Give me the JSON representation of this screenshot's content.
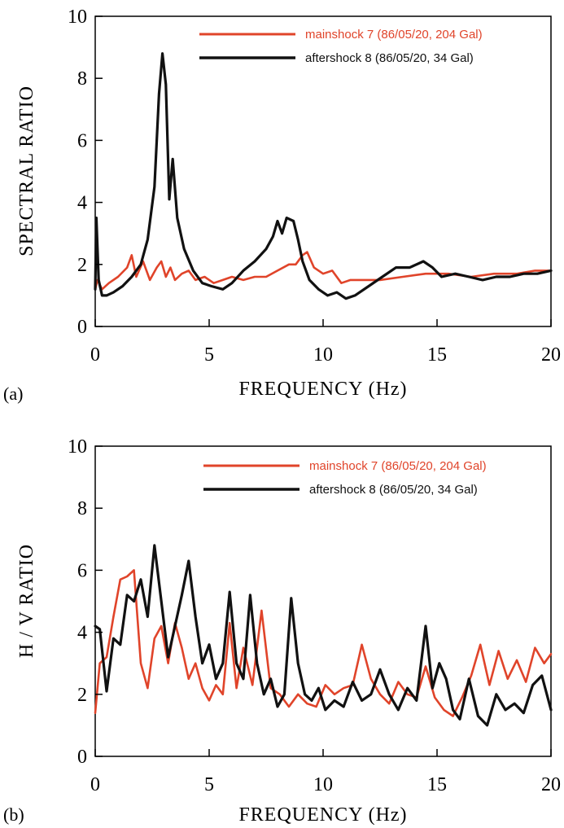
{
  "chart_data": [
    {
      "type": "line",
      "panel_label": "(a)",
      "xlabel": "FREQUENCY (Hz)",
      "ylabel": "SPECTRAL  RATIO",
      "xlim": [
        0,
        20
      ],
      "ylim": [
        0,
        10
      ],
      "xticks": [
        0,
        5,
        10,
        15,
        20
      ],
      "yticks": [
        0,
        2,
        4,
        6,
        8,
        10
      ],
      "grid": false,
      "legend_position": "top-right",
      "series": [
        {
          "name": "mainshock 7 (86/05/20, 204 Gal)",
          "color": "#e0442a",
          "x": [
            0,
            0.1,
            0.3,
            0.6,
            1.0,
            1.4,
            1.6,
            1.8,
            2.1,
            2.4,
            2.7,
            2.9,
            3.1,
            3.3,
            3.5,
            3.8,
            4.1,
            4.4,
            4.8,
            5.2,
            5.6,
            6.0,
            6.5,
            7.0,
            7.5,
            8.0,
            8.5,
            8.8,
            9.1,
            9.3,
            9.6,
            10.0,
            10.4,
            10.8,
            11.2,
            11.8,
            12.5,
            13.5,
            14.5,
            15.5,
            16.5,
            17.5,
            18.5,
            19.3,
            20.0
          ],
          "y": [
            1.2,
            1.5,
            1.2,
            1.4,
            1.6,
            1.9,
            2.3,
            1.6,
            2.1,
            1.5,
            1.9,
            2.1,
            1.6,
            1.9,
            1.5,
            1.7,
            1.8,
            1.5,
            1.6,
            1.4,
            1.5,
            1.6,
            1.5,
            1.6,
            1.6,
            1.8,
            2.0,
            2.0,
            2.3,
            2.4,
            1.9,
            1.7,
            1.8,
            1.4,
            1.5,
            1.5,
            1.5,
            1.6,
            1.7,
            1.7,
            1.6,
            1.7,
            1.7,
            1.8,
            1.8
          ]
        },
        {
          "name": "aftershock 8 (86/05/20, 34 Gal)",
          "color": "#111111",
          "x": [
            0,
            0.05,
            0.15,
            0.3,
            0.5,
            0.8,
            1.2,
            1.6,
            2.0,
            2.3,
            2.6,
            2.8,
            2.95,
            3.1,
            3.25,
            3.4,
            3.6,
            3.9,
            4.3,
            4.7,
            5.1,
            5.6,
            6.0,
            6.5,
            7.0,
            7.5,
            7.8,
            8.0,
            8.2,
            8.4,
            8.7,
            8.9,
            9.1,
            9.4,
            9.8,
            10.2,
            10.6,
            11.0,
            11.4,
            12.0,
            12.6,
            13.2,
            13.8,
            14.4,
            14.8,
            15.2,
            15.8,
            16.4,
            17.0,
            17.6,
            18.2,
            18.8,
            19.4,
            20.0
          ],
          "y": [
            1.2,
            3.5,
            1.5,
            1.0,
            1.0,
            1.1,
            1.3,
            1.6,
            2.0,
            2.8,
            4.5,
            7.5,
            8.8,
            7.8,
            4.1,
            5.4,
            3.5,
            2.5,
            1.8,
            1.4,
            1.3,
            1.2,
            1.4,
            1.8,
            2.1,
            2.5,
            2.9,
            3.4,
            3.0,
            3.5,
            3.4,
            2.8,
            2.1,
            1.5,
            1.2,
            1.0,
            1.1,
            0.9,
            1.0,
            1.3,
            1.6,
            1.9,
            1.9,
            2.1,
            1.9,
            1.6,
            1.7,
            1.6,
            1.5,
            1.6,
            1.6,
            1.7,
            1.7,
            1.8
          ]
        }
      ]
    },
    {
      "type": "line",
      "panel_label": "(b)",
      "xlabel": "FREQUENCY (Hz)",
      "ylabel": "H / V  RATIO",
      "xlim": [
        0,
        20
      ],
      "ylim": [
        0,
        10
      ],
      "xticks": [
        0,
        5,
        10,
        15,
        20
      ],
      "yticks": [
        0,
        2,
        4,
        6,
        8,
        10
      ],
      "grid": false,
      "legend_position": "top-right",
      "series": [
        {
          "name": "mainshock 7 (86/05/20, 204 Gal)",
          "color": "#e0442a",
          "x": [
            0,
            0.2,
            0.5,
            0.8,
            1.1,
            1.4,
            1.7,
            2.0,
            2.3,
            2.6,
            2.9,
            3.2,
            3.5,
            3.8,
            4.1,
            4.4,
            4.7,
            5.0,
            5.3,
            5.6,
            5.9,
            6.2,
            6.5,
            6.9,
            7.3,
            7.7,
            8.1,
            8.5,
            8.9,
            9.3,
            9.7,
            10.1,
            10.5,
            10.9,
            11.3,
            11.7,
            12.1,
            12.5,
            12.9,
            13.3,
            13.7,
            14.1,
            14.5,
            14.9,
            15.3,
            15.7,
            16.1,
            16.5,
            16.9,
            17.3,
            17.7,
            18.1,
            18.5,
            18.9,
            19.3,
            19.7,
            20.0
          ],
          "y": [
            1.4,
            3.0,
            3.2,
            4.5,
            5.7,
            5.8,
            6.0,
            3.0,
            2.2,
            3.8,
            4.2,
            3.0,
            4.3,
            3.5,
            2.5,
            3.0,
            2.2,
            1.8,
            2.3,
            2.0,
            4.3,
            2.2,
            3.5,
            2.3,
            4.7,
            2.2,
            2.0,
            1.6,
            2.0,
            1.7,
            1.6,
            2.3,
            2.0,
            2.2,
            2.3,
            3.6,
            2.5,
            2.0,
            1.7,
            2.4,
            2.0,
            1.9,
            2.9,
            1.9,
            1.5,
            1.3,
            1.9,
            2.6,
            3.6,
            2.3,
            3.4,
            2.5,
            3.1,
            2.4,
            3.5,
            3.0,
            3.3
          ]
        },
        {
          "name": "aftershock 8 (86/05/20, 34 Gal)",
          "color": "#111111",
          "x": [
            0,
            0.2,
            0.5,
            0.8,
            1.1,
            1.4,
            1.7,
            2.0,
            2.3,
            2.6,
            2.9,
            3.2,
            3.5,
            3.8,
            4.1,
            4.4,
            4.7,
            5.0,
            5.3,
            5.6,
            5.9,
            6.2,
            6.5,
            6.8,
            7.1,
            7.4,
            7.7,
            8.0,
            8.3,
            8.6,
            8.9,
            9.2,
            9.5,
            9.8,
            10.1,
            10.5,
            10.9,
            11.3,
            11.7,
            12.1,
            12.5,
            12.9,
            13.3,
            13.7,
            14.1,
            14.5,
            14.8,
            15.1,
            15.4,
            15.7,
            16.0,
            16.4,
            16.8,
            17.2,
            17.6,
            18.0,
            18.4,
            18.8,
            19.2,
            19.6,
            20.0
          ],
          "y": [
            4.2,
            4.1,
            2.1,
            3.8,
            3.6,
            5.2,
            5.0,
            5.7,
            4.5,
            6.8,
            5.0,
            3.2,
            4.2,
            5.2,
            6.3,
            4.5,
            3.0,
            3.6,
            2.5,
            3.0,
            5.3,
            3.0,
            2.5,
            5.2,
            3.0,
            2.0,
            2.5,
            1.6,
            2.0,
            5.1,
            3.0,
            2.0,
            1.8,
            2.2,
            1.5,
            1.8,
            1.6,
            2.4,
            1.8,
            2.0,
            2.8,
            2.0,
            1.5,
            2.2,
            1.8,
            4.2,
            2.2,
            3.0,
            2.5,
            1.5,
            1.2,
            2.5,
            1.3,
            1.0,
            2.0,
            1.5,
            1.7,
            1.4,
            2.3,
            2.6,
            1.5
          ]
        }
      ]
    }
  ]
}
